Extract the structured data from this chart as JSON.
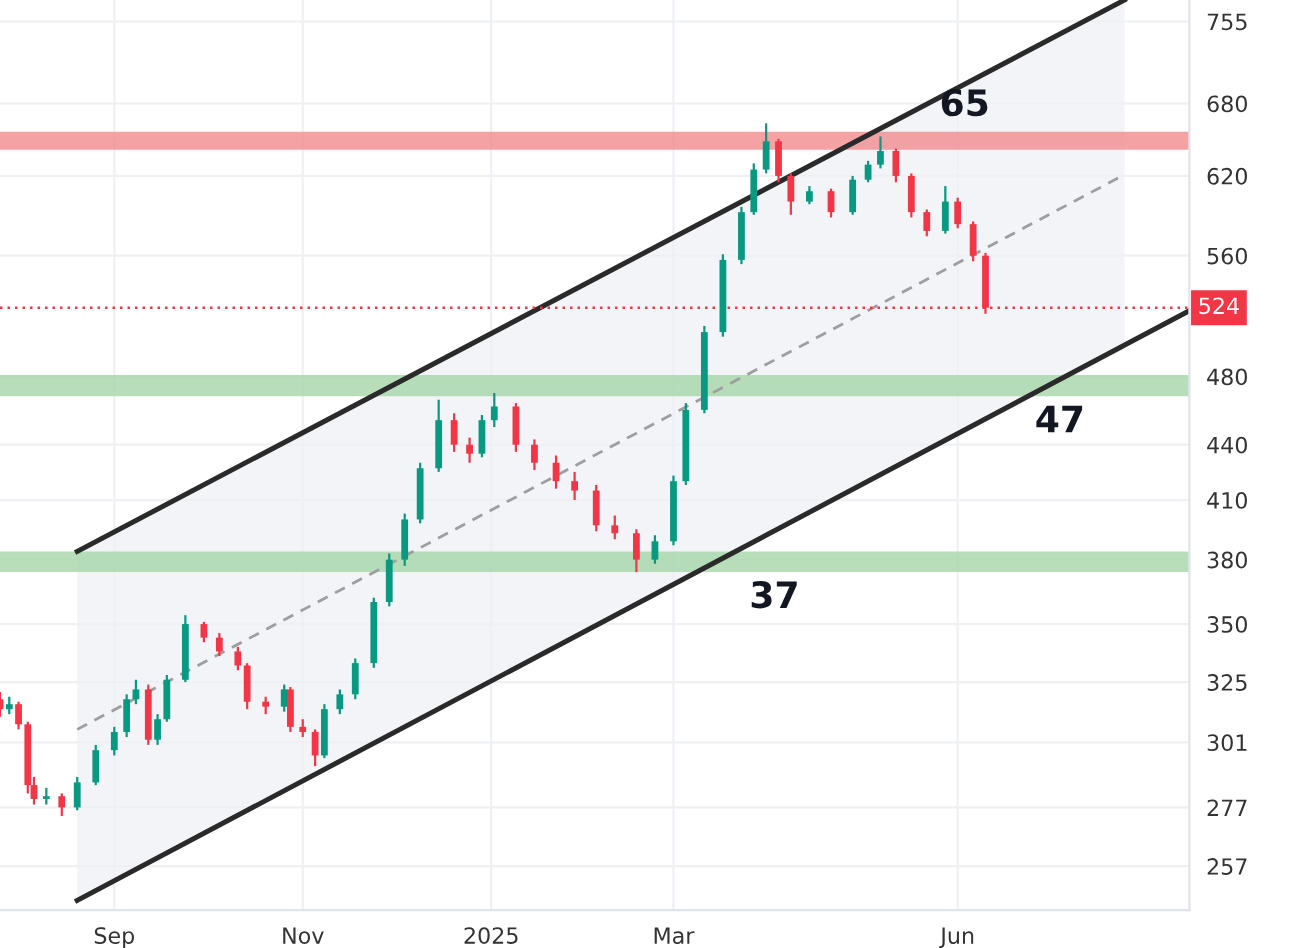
{
  "chart_data": {
    "type": "candlestick",
    "log": true,
    "grid": true,
    "xlim": [
      "2024-07-26",
      "2025-08-15"
    ],
    "xticks": [
      {
        "value": "2024-09-01",
        "label": "Sep"
      },
      {
        "value": "2024-11-01",
        "label": "Nov"
      },
      {
        "value": "2025-01-01",
        "label": "2025"
      },
      {
        "value": "2025-03-01",
        "label": "Mar"
      },
      {
        "value": "2025-06-01",
        "label": "Jun"
      }
    ],
    "ylim": [
      243,
      776
    ],
    "yticks": [
      257,
      277,
      301,
      325,
      350,
      380,
      410,
      440,
      480,
      560,
      620,
      680,
      755
    ],
    "x": [
      "2024-07-26",
      "2024-07-29",
      "2024-08-01",
      "2024-08-04",
      "2024-08-06",
      "2024-08-10",
      "2024-08-15",
      "2024-08-20",
      "2024-08-26",
      "2024-09-01",
      "2024-09-05",
      "2024-09-08",
      "2024-09-12",
      "2024-09-15",
      "2024-09-18",
      "2024-09-24",
      "2024-09-30",
      "2024-10-05",
      "2024-10-11",
      "2024-10-14",
      "2024-10-20",
      "2024-10-26",
      "2024-10-28",
      "2024-11-01",
      "2024-11-05",
      "2024-11-08",
      "2024-11-13",
      "2024-11-18",
      "2024-11-24",
      "2024-11-29",
      "2024-12-04",
      "2024-12-09",
      "2024-12-15",
      "2024-12-20",
      "2024-12-25",
      "2024-12-29",
      "2025-01-02",
      "2025-01-09",
      "2025-01-15",
      "2025-01-22",
      "2025-01-28",
      "2025-02-04",
      "2025-02-10",
      "2025-02-17",
      "2025-02-23",
      "2025-03-01",
      "2025-03-05",
      "2025-03-11",
      "2025-03-17",
      "2025-03-23",
      "2025-03-27",
      "2025-03-31",
      "2025-04-04",
      "2025-04-08",
      "2025-04-14",
      "2025-04-21",
      "2025-04-28",
      "2025-05-03",
      "2025-05-07",
      "2025-05-12",
      "2025-05-17",
      "2025-05-22",
      "2025-05-28",
      "2025-06-01",
      "2025-06-06",
      "2025-06-10"
    ],
    "ohlc": [
      [
        318,
        321,
        311,
        314
      ],
      [
        314,
        319,
        312,
        316
      ],
      [
        316,
        317,
        306,
        308
      ],
      [
        308,
        309,
        282,
        285
      ],
      [
        285,
        288,
        278,
        280
      ],
      [
        280,
        284,
        278,
        281
      ],
      [
        281,
        282,
        274,
        277
      ],
      [
        277,
        288,
        276,
        286
      ],
      [
        286,
        300,
        285,
        298
      ],
      [
        298,
        307,
        296,
        305
      ],
      [
        305,
        320,
        303,
        318
      ],
      [
        318,
        326,
        316,
        322
      ],
      [
        322,
        324,
        300,
        302
      ],
      [
        302,
        312,
        300,
        310
      ],
      [
        310,
        328,
        309,
        326
      ],
      [
        326,
        354,
        325,
        350
      ],
      [
        350,
        351,
        342,
        344
      ],
      [
        344,
        346,
        336,
        338
      ],
      [
        338,
        340,
        330,
        332
      ],
      [
        332,
        333,
        314,
        317
      ],
      [
        317,
        319,
        312,
        315
      ],
      [
        315,
        324,
        313,
        322
      ],
      [
        322,
        323,
        305,
        307
      ],
      [
        307,
        310,
        303,
        305
      ],
      [
        305,
        306,
        292,
        296
      ],
      [
        296,
        316,
        295,
        314
      ],
      [
        314,
        322,
        312,
        320
      ],
      [
        320,
        335,
        318,
        333
      ],
      [
        333,
        362,
        331,
        360
      ],
      [
        360,
        383,
        358,
        380
      ],
      [
        380,
        403,
        377,
        400
      ],
      [
        400,
        430,
        398,
        427
      ],
      [
        427,
        466,
        425,
        454
      ],
      [
        454,
        458,
        436,
        440
      ],
      [
        440,
        444,
        430,
        435
      ],
      [
        435,
        457,
        433,
        454
      ],
      [
        454,
        470,
        450,
        462
      ],
      [
        462,
        464,
        436,
        440
      ],
      [
        440,
        443,
        426,
        430
      ],
      [
        430,
        434,
        416,
        420
      ],
      [
        420,
        425,
        410,
        415
      ],
      [
        415,
        418,
        394,
        397
      ],
      [
        397,
        402,
        390,
        393
      ],
      [
        393,
        395,
        374,
        380
      ],
      [
        380,
        392,
        378,
        389
      ],
      [
        389,
        423,
        387,
        420
      ],
      [
        420,
        464,
        418,
        460
      ],
      [
        460,
        512,
        458,
        508
      ],
      [
        508,
        561,
        505,
        557
      ],
      [
        557,
        596,
        554,
        592
      ],
      [
        592,
        630,
        590,
        625
      ],
      [
        625,
        663,
        622,
        648
      ],
      [
        648,
        650,
        615,
        620
      ],
      [
        620,
        622,
        590,
        600
      ],
      [
        600,
        612,
        598,
        608
      ],
      [
        608,
        610,
        588,
        592
      ],
      [
        592,
        620,
        590,
        617
      ],
      [
        617,
        632,
        615,
        629
      ],
      [
        629,
        652,
        626,
        640
      ],
      [
        640,
        642,
        615,
        620
      ],
      [
        620,
        622,
        588,
        592
      ],
      [
        592,
        594,
        574,
        578
      ],
      [
        578,
        612,
        576,
        600
      ],
      [
        600,
        603,
        580,
        583
      ],
      [
        583,
        585,
        556,
        560
      ],
      [
        560,
        562,
        520,
        524
      ]
    ],
    "colors": [
      "#f23645",
      "#089981",
      "#f23645",
      "#f23645",
      "#f23645",
      "#089981",
      "#f23645",
      "#089981",
      "#089981",
      "#089981",
      "#089981",
      "#089981",
      "#f23645",
      "#089981",
      "#089981",
      "#089981",
      "#f23645",
      "#f23645",
      "#f23645",
      "#f23645",
      "#f23645",
      "#089981",
      "#f23645",
      "#f23645",
      "#f23645",
      "#089981",
      "#089981",
      "#089981",
      "#089981",
      "#089981",
      "#089981",
      "#089981",
      "#089981",
      "#f23645",
      "#f23645",
      "#089981",
      "#089981",
      "#f23645",
      "#f23645",
      "#f23645",
      "#f23645",
      "#f23645",
      "#f23645",
      "#f23645",
      "#089981",
      "#089981",
      "#089981",
      "#089981",
      "#089981",
      "#089981",
      "#089981",
      "#089981",
      "#f23645",
      "#f23645",
      "#089981",
      "#f23645",
      "#089981",
      "#089981",
      "#089981",
      "#f23645",
      "#f23645",
      "#f23645",
      "#089981",
      "#f23645",
      "#f23645",
      "#f23645"
    ],
    "series": [
      {
        "type": "line",
        "color": "#9e9e9e",
        "line_style": "dashed",
        "x": [
          "2024-08-20",
          "2025-07-25"
        ],
        "values": [
          306,
          621
        ],
        "lower": [
          246,
          497
        ],
        "upper": [
          384,
          776
        ]
      },
      {
        "type": "line",
        "color": "#2a2a2a",
        "line_style": "solid",
        "x": [
          "2024-08-20",
          "2025-07-25"
        ],
        "values": [
          384,
          776
        ]
      },
      {
        "type": "line",
        "color": "#2a2a2a",
        "line_style": "solid",
        "x": [
          "2024-08-20",
          "2025-08-15"
        ],
        "values": [
          246,
          522
        ]
      }
    ],
    "ref_lines": [
      {
        "axis": "y",
        "value": 524,
        "label": "524",
        "color": "#f23645",
        "line_style": "dotted"
      }
    ],
    "bands": [
      {
        "axis": "y",
        "from": 641,
        "to": 656,
        "label": "65",
        "color": "#f28b8f"
      },
      {
        "axis": "y",
        "from": 468,
        "to": 481,
        "label": "47",
        "color": "#a5d6a7"
      },
      {
        "axis": "y",
        "from": 374,
        "to": 384,
        "label": "37",
        "color": "#a5d6a7"
      }
    ]
  }
}
